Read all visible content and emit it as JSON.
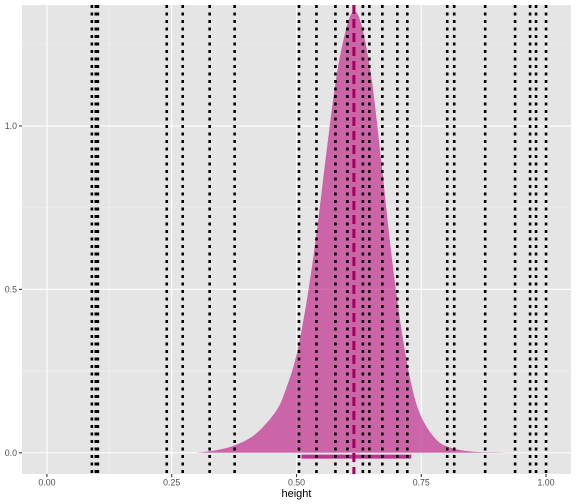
{
  "chart_data": {
    "type": "area",
    "xlabel": "height",
    "ylabel": "",
    "xlim": [
      -0.05,
      1.05
    ],
    "ylim": [
      -0.065,
      1.37
    ],
    "x_ticks": [
      0.0,
      0.25,
      0.5,
      0.75,
      1.0
    ],
    "x_tick_labels": [
      "0.00",
      "0.25",
      "0.50",
      "0.75",
      "1.00"
    ],
    "y_ticks": [
      0.0,
      0.5,
      1.0
    ],
    "y_tick_labels": [
      "0.0",
      "0.5",
      "1.0"
    ],
    "grid": true,
    "density": {
      "x": [
        0.3,
        0.34,
        0.38,
        0.42,
        0.46,
        0.48,
        0.5,
        0.52,
        0.54,
        0.56,
        0.58,
        0.6,
        0.615,
        0.63,
        0.65,
        0.67,
        0.69,
        0.71,
        0.73,
        0.75,
        0.78,
        0.81,
        0.85,
        0.9,
        0.94
      ],
      "y": [
        0.0,
        0.008,
        0.025,
        0.06,
        0.13,
        0.2,
        0.3,
        0.46,
        0.67,
        0.92,
        1.15,
        1.3,
        1.35,
        1.31,
        1.15,
        0.89,
        0.61,
        0.38,
        0.21,
        0.11,
        0.04,
        0.015,
        0.004,
        0.001,
        0.0
      ],
      "color": "#c2338f",
      "opacity": 0.72
    },
    "interval": {
      "low": 0.51,
      "high": 0.73,
      "y": -0.012,
      "color": "#c2338f"
    },
    "point_estimate": {
      "x": 0.615,
      "color": "#a3005f"
    },
    "observations": {
      "values": [
        0.09,
        0.098,
        0.102,
        0.24,
        0.272,
        0.326,
        0.376,
        0.505,
        0.54,
        0.578,
        0.602,
        0.633,
        0.646,
        0.672,
        0.702,
        0.722,
        0.802,
        0.816,
        0.878,
        0.938,
        0.968,
        0.98,
        1.0
      ],
      "color": "#000000",
      "style": "dotted"
    },
    "colors": {
      "panel": "#e5e5e5",
      "grid_major": "#ffffff",
      "grid_minor": "#f0f0f0"
    }
  }
}
